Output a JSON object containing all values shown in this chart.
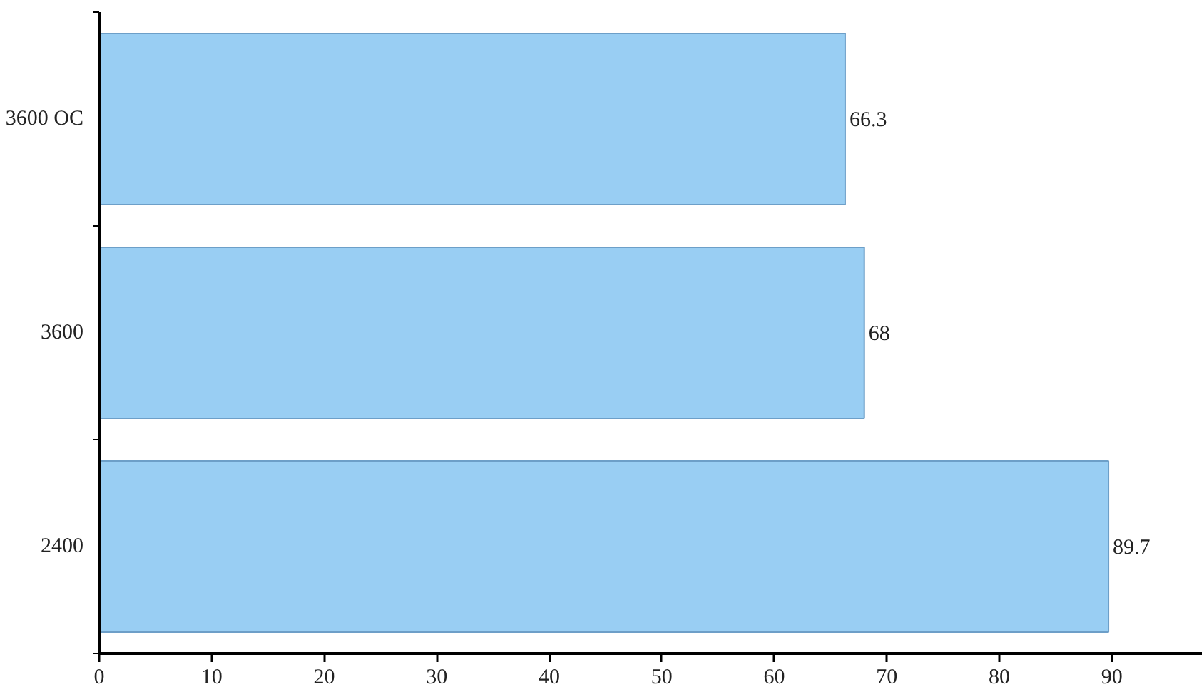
{
  "chart_data": {
    "type": "bar",
    "orientation": "horizontal",
    "categories": [
      "3600 OC",
      "3600",
      "2400"
    ],
    "values": [
      66.3,
      68,
      89.7
    ],
    "color": "#99cef3",
    "xlim": [
      0,
      98
    ],
    "xticks": [
      0,
      10,
      20,
      30,
      40,
      50,
      60,
      70,
      80,
      90
    ],
    "data_labels": true,
    "grid": false
  }
}
